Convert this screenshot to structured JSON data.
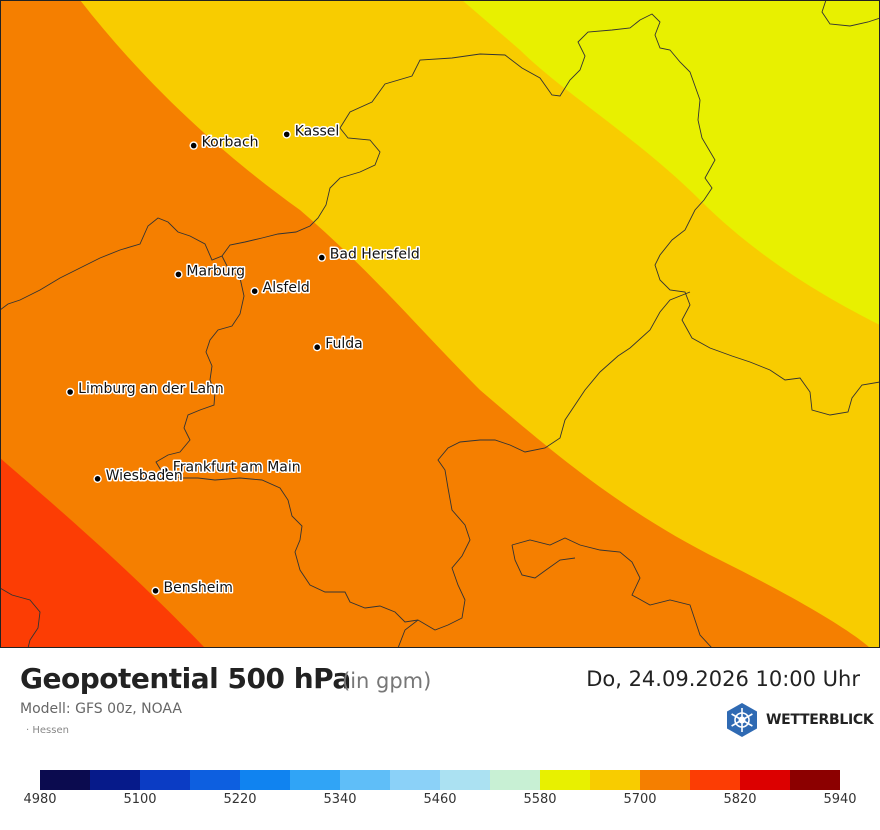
{
  "map": {
    "cities": [
      {
        "name": "Kassel",
        "lon": 9.48,
        "lat": 51.31
      },
      {
        "name": "Korbach",
        "lon": 8.87,
        "lat": 51.27
      },
      {
        "name": "Bad Hersfeld",
        "lon": 9.71,
        "lat": 50.87
      },
      {
        "name": "Marburg",
        "lon": 8.77,
        "lat": 50.81
      },
      {
        "name": "Alsfeld",
        "lon": 9.27,
        "lat": 50.75
      },
      {
        "name": "Fulda",
        "lon": 9.68,
        "lat": 50.55
      },
      {
        "name": "Limburg an der Lahn",
        "lon": 8.06,
        "lat": 50.39
      },
      {
        "name": "Frankfurt am Main",
        "lon": 8.68,
        "lat": 50.11
      },
      {
        "name": "Wiesbaden",
        "lon": 8.24,
        "lat": 50.08
      },
      {
        "name": "Bensheim",
        "lon": 8.62,
        "lat": 49.68
      }
    ],
    "field_zones": [
      {
        "range": "5580-5640 gpm",
        "color": "#e8f000"
      },
      {
        "range": "5640-5700 gpm",
        "color": "#f8cc00"
      },
      {
        "range": "5700-5760 gpm",
        "color": "#f57f00"
      },
      {
        "range": "5760-5820 gpm",
        "color": "#fc3d04"
      }
    ]
  },
  "header": {
    "title": "Geopotential 500 hPa",
    "unit": "(in gpm)",
    "datetime": "Do, 24.09.2026 10:00 Uhr",
    "model": "Modell: GFS 00z, NOAA",
    "region": "· Hessen"
  },
  "brand": {
    "name": "WETTERBLICK",
    "color": "#2f6ab3"
  },
  "colorbar": {
    "colors": [
      "#0b0b4f",
      "#061a8a",
      "#0b3cc4",
      "#0d5fe0",
      "#1083f0",
      "#30a4f6",
      "#5fbef8",
      "#8bd1f8",
      "#abe1f2",
      "#c8f0d4",
      "#e8f000",
      "#f8cc00",
      "#f57f00",
      "#fc3d04",
      "#dc0000",
      "#8c0000"
    ],
    "tick_labels": [
      "4980",
      "5100",
      "5220",
      "5340",
      "5460",
      "5580",
      "5700",
      "5820",
      "5940"
    ]
  }
}
